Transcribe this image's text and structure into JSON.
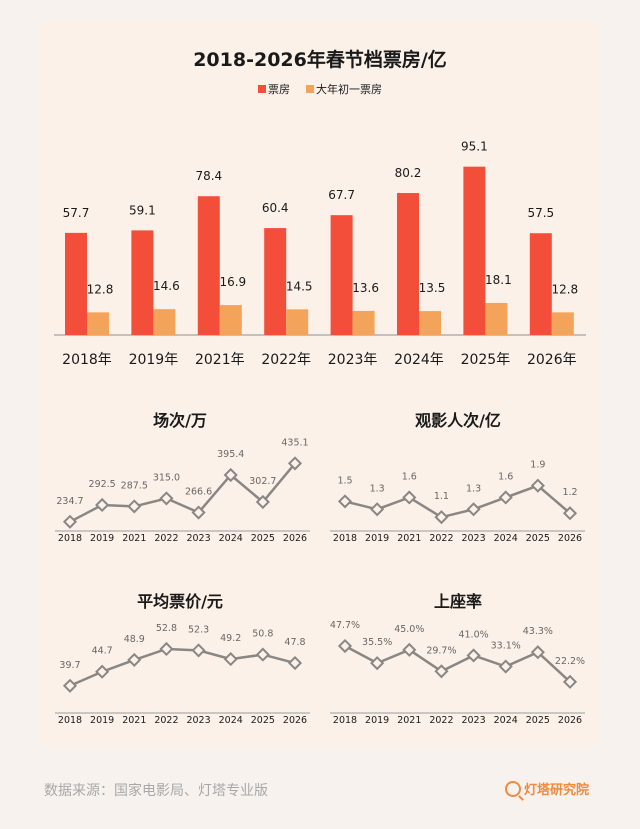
{
  "colors": {
    "box_office": "#f24e3a",
    "first_day": "#f4a35a",
    "line": "#8a8683",
    "panel": "#fbf1e8",
    "text": "#1a1a1a",
    "label": "#6b6664"
  },
  "chart_data": [
    {
      "type": "bar",
      "title": "2018-2026年春节档票房/亿",
      "categories": [
        "2018年",
        "2019年",
        "2021年",
        "2022年",
        "2023年",
        "2024年",
        "2025年",
        "2026年"
      ],
      "series": [
        {
          "name": "票房",
          "values": [
            57.7,
            59.1,
            78.4,
            60.4,
            67.7,
            80.2,
            95.1,
            57.5
          ]
        },
        {
          "name": "大年初一票房",
          "values": [
            12.8,
            14.6,
            16.9,
            14.5,
            13.6,
            13.5,
            18.1,
            12.8
          ]
        }
      ],
      "ylim": [
        0,
        100
      ],
      "legend": "top",
      "grid": false
    },
    {
      "type": "line",
      "title": "场次/万",
      "categories": [
        "2018",
        "2019",
        "2021",
        "2022",
        "2023",
        "2024",
        "2025",
        "2026"
      ],
      "values": [
        234.7,
        292.5,
        287.5,
        315.0,
        266.6,
        395.4,
        302.7,
        435.1
      ],
      "labels": [
        "234.7",
        "292.5",
        "287.5",
        "315.0",
        "266.6",
        "395.4",
        "302.7",
        "435.1"
      ],
      "ylim": [
        210,
        440
      ]
    },
    {
      "type": "line",
      "title": "观影人次/亿",
      "categories": [
        "2018",
        "2019",
        "2021",
        "2022",
        "2023",
        "2024",
        "2025",
        "2026"
      ],
      "values": [
        1.5,
        1.3,
        1.6,
        1.1,
        1.3,
        1.6,
        1.9,
        1.2
      ],
      "labels": [
        "1.5",
        "1.3",
        "1.6",
        "1.1",
        "1.3",
        "1.6",
        "1.9",
        "1.2"
      ],
      "ylim": [
        0.8,
        2.5
      ]
    },
    {
      "type": "line",
      "title": "平均票价/元",
      "categories": [
        "2018",
        "2019",
        "2021",
        "2022",
        "2023",
        "2024",
        "2025",
        "2026"
      ],
      "values": [
        39.7,
        44.7,
        48.9,
        52.8,
        52.3,
        49.2,
        50.8,
        47.8
      ],
      "labels": [
        "39.7",
        "44.7",
        "48.9",
        "52.8",
        "52.3",
        "49.2",
        "50.8",
        "47.8"
      ],
      "ylim": [
        30,
        56
      ]
    },
    {
      "type": "line",
      "title": "上座率",
      "categories": [
        "2018",
        "2019",
        "2021",
        "2022",
        "2023",
        "2024",
        "2025",
        "2026"
      ],
      "values": [
        47.7,
        35.5,
        45.0,
        29.7,
        41.0,
        33.1,
        43.3,
        22.2
      ],
      "labels": [
        "47.7%",
        "35.5%",
        "45.0%",
        "29.7%",
        "41.0%",
        "33.1%",
        "43.3%",
        "22.2%"
      ],
      "ylim": [
        0,
        52
      ]
    }
  ],
  "footer": {
    "source": "数据来源：国家电影局、灯塔专业版",
    "brand": "灯塔研究院",
    "brand_icon": "lighthouse-magnifier-icon"
  }
}
